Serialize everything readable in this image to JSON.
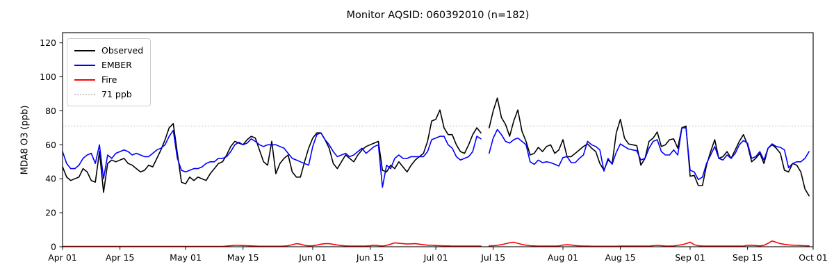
{
  "chart_data": {
    "type": "line",
    "title": "Monitor AQSID: 060392010 (n=182)",
    "ylabel": "MDA8 O3 (ppb)",
    "xlabel": "",
    "grid": false,
    "legend_position": "upper left",
    "ylim": [
      0,
      126
    ],
    "yticks": [
      0,
      20,
      40,
      60,
      80,
      100,
      120
    ],
    "xlim_days": [
      0,
      183
    ],
    "x_start": "Apr 01",
    "x_ticks": [
      {
        "label": "Apr 01",
        "day": 0
      },
      {
        "label": "Apr 15",
        "day": 14
      },
      {
        "label": "May 01",
        "day": 30
      },
      {
        "label": "May 15",
        "day": 44
      },
      {
        "label": "Jun 01",
        "day": 61
      },
      {
        "label": "Jun 15",
        "day": 75
      },
      {
        "label": "Jul 01",
        "day": 91
      },
      {
        "label": "Jul 15",
        "day": 105
      },
      {
        "label": "Aug 01",
        "day": 122
      },
      {
        "label": "Aug 15",
        "day": 136
      },
      {
        "label": "Sep 01",
        "day": 153
      },
      {
        "label": "Sep 15",
        "day": 167
      },
      {
        "label": "Oct 01",
        "day": 183
      }
    ],
    "threshold": {
      "value": 71,
      "label": "71 ppb",
      "color": "#c8c8c8"
    },
    "series": [
      {
        "name": "Observed",
        "color": "#000000",
        "values": [
          47,
          41,
          39,
          40,
          41,
          46,
          44,
          39,
          38,
          56,
          32,
          49,
          51,
          50,
          51,
          52,
          49,
          48,
          46,
          44,
          45,
          48,
          47,
          52,
          57,
          63,
          70,
          72.5,
          55,
          38,
          37,
          41,
          39,
          41,
          40,
          39,
          43,
          46,
          49,
          50,
          54,
          59,
          62,
          61,
          60,
          63,
          65,
          64,
          57,
          50,
          48,
          62,
          43,
          49,
          52,
          54,
          44,
          41,
          41,
          50,
          58,
          64,
          67,
          67,
          63,
          58,
          49,
          46,
          50,
          54,
          52,
          50,
          54,
          57,
          59,
          60,
          61,
          62,
          45,
          44,
          48,
          46,
          50,
          47,
          44,
          48,
          51,
          53,
          55,
          62,
          74,
          75,
          80.5,
          70,
          66,
          66,
          60,
          56,
          55,
          60,
          66,
          70,
          67,
          null,
          70,
          80,
          87.5,
          76,
          72,
          65,
          74,
          80.5,
          68,
          62,
          54,
          55,
          58.5,
          56,
          59,
          60,
          55,
          57,
          63,
          53,
          53,
          55,
          57,
          59,
          60.5,
          58,
          56,
          49,
          45,
          51,
          49,
          67,
          75,
          64,
          60.5,
          60,
          59.5,
          48,
          52,
          62,
          64,
          67.5,
          59,
          60,
          63,
          63.5,
          58,
          70,
          71,
          41.5,
          42,
          36,
          36,
          48,
          56,
          63,
          52,
          53,
          56,
          52,
          57,
          62,
          66,
          60,
          50,
          52,
          55,
          49,
          58,
          60,
          58,
          55,
          45,
          44,
          49,
          48,
          44,
          34,
          30
        ]
      },
      {
        "name": "EMBER",
        "color": "#0000ff",
        "values": [
          56,
          49,
          46,
          46,
          48,
          52,
          54,
          55,
          49,
          60,
          40,
          54,
          52,
          55,
          56,
          57,
          56,
          54,
          55,
          54,
          53,
          53,
          55,
          57,
          58,
          60,
          65,
          68.5,
          52,
          45,
          44,
          45,
          46,
          46,
          47,
          49,
          50,
          50,
          52,
          52,
          53,
          56,
          60,
          61.5,
          60,
          61,
          63.5,
          62,
          60,
          59,
          60,
          60,
          60,
          59,
          58,
          55,
          52,
          51,
          50,
          49,
          48,
          59,
          66,
          67,
          63,
          60,
          56,
          53,
          54,
          55,
          53,
          54,
          56,
          58,
          55,
          57,
          59,
          60,
          35,
          48,
          46,
          52,
          54,
          52,
          52,
          53,
          53,
          53,
          53,
          56,
          63,
          64,
          65,
          65,
          60,
          58,
          53,
          51,
          52,
          53,
          56,
          65,
          63.5,
          null,
          55,
          64,
          69,
          66,
          62,
          61,
          63,
          64,
          62,
          60,
          50,
          48.5,
          51,
          49.5,
          50,
          49.5,
          48.5,
          47.5,
          52.5,
          53,
          49.5,
          49.5,
          52,
          54,
          62,
          60,
          59,
          57,
          44.5,
          52,
          48.5,
          55.5,
          60.5,
          59,
          57.5,
          57,
          56.5,
          51,
          52,
          58,
          62,
          63,
          56,
          54,
          54,
          57,
          54,
          70,
          70,
          45,
          44,
          39.5,
          41,
          49,
          54,
          59,
          52,
          51,
          54,
          52,
          55,
          60,
          62.5,
          61,
          52,
          53,
          56,
          51,
          58,
          60.5,
          59,
          58.5,
          57,
          46.5,
          49,
          50,
          50,
          52,
          56
        ]
      },
      {
        "name": "Fire",
        "color": "#ff0000",
        "values": [
          0.2,
          0.2,
          0.2,
          0.2,
          0.2,
          0.2,
          0.2,
          0.2,
          0.2,
          0.2,
          0.2,
          0.2,
          0.2,
          0.2,
          0.2,
          0.2,
          0.2,
          0.2,
          0.2,
          0.2,
          0.2,
          0.2,
          0.2,
          0.2,
          0.2,
          0.2,
          0.2,
          0.2,
          0.2,
          0.2,
          0.2,
          0.2,
          0.2,
          0.2,
          0.2,
          0.2,
          0.2,
          0.2,
          0.2,
          0.2,
          0.4,
          0.6,
          0.8,
          0.8,
          0.7,
          0.6,
          0.5,
          0.4,
          0.3,
          0.3,
          0.3,
          0.3,
          0.3,
          0.3,
          0.4,
          0.6,
          1.2,
          1.8,
          1.5,
          0.8,
          0.5,
          0.6,
          1.0,
          1.5,
          1.8,
          1.8,
          1.4,
          1.0,
          0.7,
          0.5,
          0.4,
          0.4,
          0.4,
          0.4,
          0.4,
          0.6,
          0.9,
          0.6,
          0.4,
          0.8,
          1.5,
          2.3,
          2.0,
          1.8,
          1.6,
          1.7,
          1.8,
          1.5,
          1.2,
          0.9,
          0.8,
          0.7,
          0.6,
          0.5,
          0.5,
          0.4,
          0.4,
          0.4,
          0.4,
          0.4,
          0.4,
          0.4,
          0.4,
          null,
          0.5,
          0.6,
          0.8,
          1.2,
          1.8,
          2.3,
          2.7,
          2.0,
          1.4,
          0.9,
          0.6,
          0.5,
          0.4,
          0.4,
          0.4,
          0.4,
          0.4,
          0.5,
          1.0,
          1.2,
          1.0,
          0.7,
          0.5,
          0.4,
          0.4,
          0.3,
          0.3,
          0.3,
          0.3,
          0.3,
          0.3,
          0.3,
          0.4,
          0.4,
          0.4,
          0.4,
          0.4,
          0.4,
          0.4,
          0.4,
          0.6,
          0.8,
          0.6,
          0.4,
          0.4,
          0.5,
          0.8,
          1.2,
          1.8,
          2.7,
          1.2,
          0.6,
          0.4,
          0.4,
          0.4,
          0.4,
          0.4,
          0.4,
          0.4,
          0.4,
          0.4,
          0.4,
          0.4,
          0.8,
          0.9,
          0.7,
          0.5,
          0.8,
          2.0,
          3.4,
          2.6,
          1.8,
          1.4,
          1.1,
          0.9,
          0.8,
          0.7,
          0.6,
          0.5
        ]
      }
    ]
  },
  "legend": {
    "items": [
      {
        "label": "Observed",
        "color": "#000000",
        "style": "solid"
      },
      {
        "label": "EMBER",
        "color": "#0000ff",
        "style": "solid"
      },
      {
        "label": "Fire",
        "color": "#ff0000",
        "style": "solid"
      },
      {
        "label": "71 ppb",
        "color": "#c8c8c8",
        "style": "dotted"
      }
    ]
  }
}
